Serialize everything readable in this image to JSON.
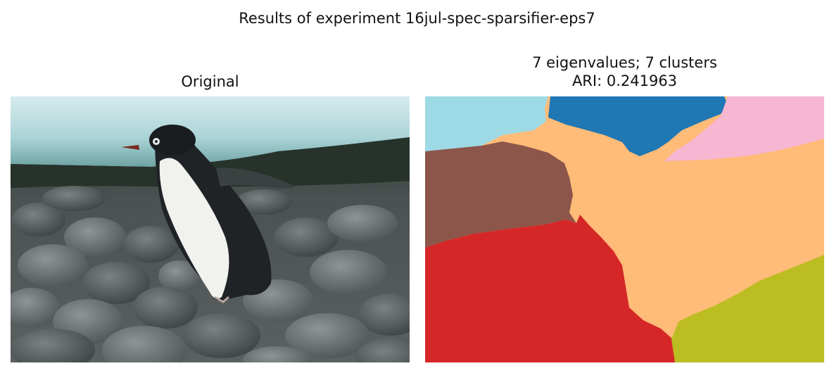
{
  "figure": {
    "title": "Results of experiment 16jul-spec-sparsifier-eps7"
  },
  "left_panel": {
    "title": "Original"
  },
  "right_panel": {
    "title_line1": "7 eigenvalues; 7 clusters",
    "title_line2": "ARI: 0.241963"
  },
  "colors": {
    "cluster_cyan": "#9edae5",
    "cluster_blue": "#1f77b4",
    "cluster_pink": "#f7b6d2",
    "cluster_orange": "#ffbb78",
    "cluster_brown": "#8c564b",
    "cluster_red": "#d62728",
    "cluster_olive": "#bcbd22"
  }
}
